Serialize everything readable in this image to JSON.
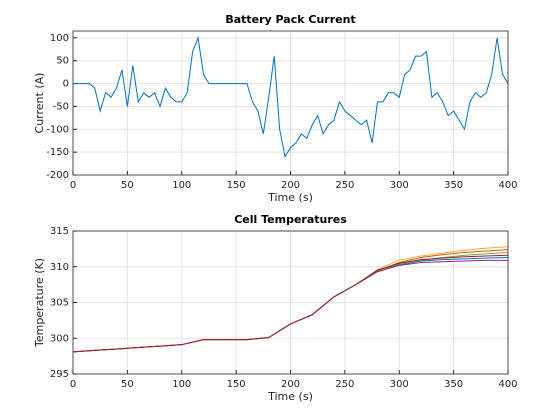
{
  "chart_data": [
    {
      "type": "line",
      "title": "Battery Pack Current",
      "xlabel": "Time (s)",
      "ylabel": "Current (A)",
      "x": [
        0,
        5,
        10,
        15,
        20,
        25,
        30,
        35,
        40,
        45,
        50,
        55,
        60,
        65,
        70,
        75,
        80,
        85,
        90,
        95,
        100,
        105,
        110,
        115,
        120,
        125,
        130,
        135,
        140,
        145,
        150,
        155,
        160,
        165,
        170,
        175,
        180,
        185,
        190,
        195,
        200,
        205,
        210,
        215,
        220,
        225,
        230,
        235,
        240,
        245,
        250,
        255,
        260,
        265,
        270,
        275,
        280,
        285,
        290,
        295,
        300,
        305,
        310,
        315,
        320,
        325,
        330,
        335,
        340,
        345,
        350,
        355,
        360,
        365,
        370,
        375,
        380,
        385,
        390,
        395,
        400
      ],
      "series": [
        {
          "color": "#0072bd",
          "values": [
            0,
            0,
            0,
            0,
            -10,
            -60,
            -20,
            -30,
            -10,
            30,
            -50,
            40,
            -40,
            -20,
            -30,
            -20,
            -50,
            -10,
            -30,
            -40,
            -40,
            -20,
            70,
            100,
            20,
            0,
            0,
            0,
            0,
            0,
            0,
            0,
            0,
            -40,
            -60,
            -110,
            -30,
            60,
            -100,
            -160,
            -140,
            -130,
            -110,
            -120,
            -90,
            -70,
            -110,
            -90,
            -80,
            -40,
            -60,
            -70,
            -80,
            -90,
            -80,
            -130,
            -40,
            -40,
            -20,
            -20,
            -30,
            20,
            30,
            60,
            60,
            70,
            -30,
            -20,
            -40,
            -70,
            -60,
            -80,
            -100,
            -40,
            -20,
            -30,
            -20,
            20,
            100,
            20,
            0
          ]
        }
      ],
      "xlim": [
        0,
        400
      ],
      "xticks": [
        0,
        50,
        100,
        150,
        200,
        250,
        300,
        350,
        400
      ],
      "ylim": [
        -200,
        115
      ],
      "yticks": [
        -200,
        -150,
        -100,
        -50,
        0,
        50,
        100
      ],
      "grid": true
    },
    {
      "type": "line",
      "title": "Cell Temperatures",
      "xlabel": "Time (s)",
      "ylabel": "Temperature (K)",
      "x": [
        0,
        20,
        40,
        60,
        80,
        100,
        120,
        140,
        160,
        180,
        200,
        220,
        240,
        260,
        280,
        300,
        320,
        340,
        360,
        380,
        400
      ],
      "series": [
        {
          "color": "#0072bd",
          "values": [
            298.1,
            298.3,
            298.5,
            298.7,
            298.9,
            299.1,
            299.8,
            299.8,
            299.8,
            300.1,
            302,
            303.3,
            305.8,
            307.5,
            309.5,
            310.3,
            310.8,
            311,
            311.1,
            311.2,
            311.3
          ]
        },
        {
          "color": "#d95319",
          "values": [
            298.1,
            298.3,
            298.5,
            298.7,
            298.9,
            299.1,
            299.8,
            299.8,
            299.8,
            300.1,
            302,
            303.3,
            305.8,
            307.5,
            309.4,
            310.6,
            311.3,
            311.7,
            312,
            312.2,
            312.4
          ]
        },
        {
          "color": "#edb120",
          "values": [
            298.1,
            298.3,
            298.5,
            298.7,
            298.9,
            299.1,
            299.8,
            299.8,
            299.8,
            300.1,
            302,
            303.3,
            305.8,
            307.5,
            309.6,
            310.9,
            311.5,
            311.9,
            312.3,
            312.6,
            312.8
          ]
        },
        {
          "color": "#7e2f8e",
          "values": [
            298.1,
            298.3,
            298.5,
            298.7,
            298.9,
            299.1,
            299.8,
            299.8,
            299.8,
            300.1,
            302,
            303.3,
            305.8,
            307.5,
            309.3,
            310.2,
            310.6,
            310.7,
            310.8,
            310.9,
            310.9
          ]
        },
        {
          "color": "#77ac30",
          "values": [
            298.1,
            298.3,
            298.5,
            298.7,
            298.9,
            299.1,
            299.8,
            299.8,
            299.8,
            300.1,
            302,
            303.3,
            305.8,
            307.5,
            309.5,
            310.4,
            310.9,
            311.3,
            311.6,
            311.8,
            312
          ]
        },
        {
          "color": "#a2142f",
          "values": [
            298.1,
            298.3,
            298.5,
            298.7,
            298.9,
            299.1,
            299.8,
            299.8,
            299.8,
            300.1,
            302,
            303.3,
            305.8,
            307.5,
            309.5,
            310.5,
            311,
            311.2,
            311.4,
            311.5,
            311.6
          ]
        }
      ],
      "xlim": [
        0,
        400
      ],
      "xticks": [
        0,
        50,
        100,
        150,
        200,
        250,
        300,
        350,
        400
      ],
      "ylim": [
        295,
        315
      ],
      "yticks": [
        295,
        300,
        305,
        310,
        315
      ],
      "grid": true
    }
  ]
}
